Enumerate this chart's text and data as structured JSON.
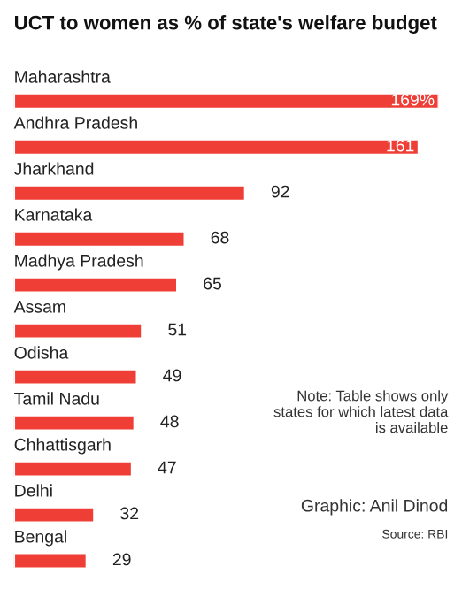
{
  "chart_data": {
    "type": "bar",
    "orientation": "horizontal",
    "title": "UCT to women as % of state's welfare budget",
    "categories": [
      "Maharashtra",
      "Andhra Pradesh",
      "Jharkhand",
      "Karnataka",
      "Madhya Pradesh",
      "Assam",
      "Odisha",
      "Tamil Nadu",
      "Chhattisgarh",
      "Delhi",
      "Bengal"
    ],
    "values": [
      169,
      161,
      92,
      68,
      65,
      51,
      49,
      48,
      47,
      32,
      29
    ],
    "value_labels": [
      "169%",
      "161",
      "92",
      "68",
      "65",
      "51",
      "49",
      "48",
      "47",
      "32",
      "29"
    ],
    "color": "#ee3e36",
    "annotations": [
      "Note: Table shows only states for which latest data is available",
      "Graphic: Anil Dinod",
      "Source: RBI"
    ]
  }
}
